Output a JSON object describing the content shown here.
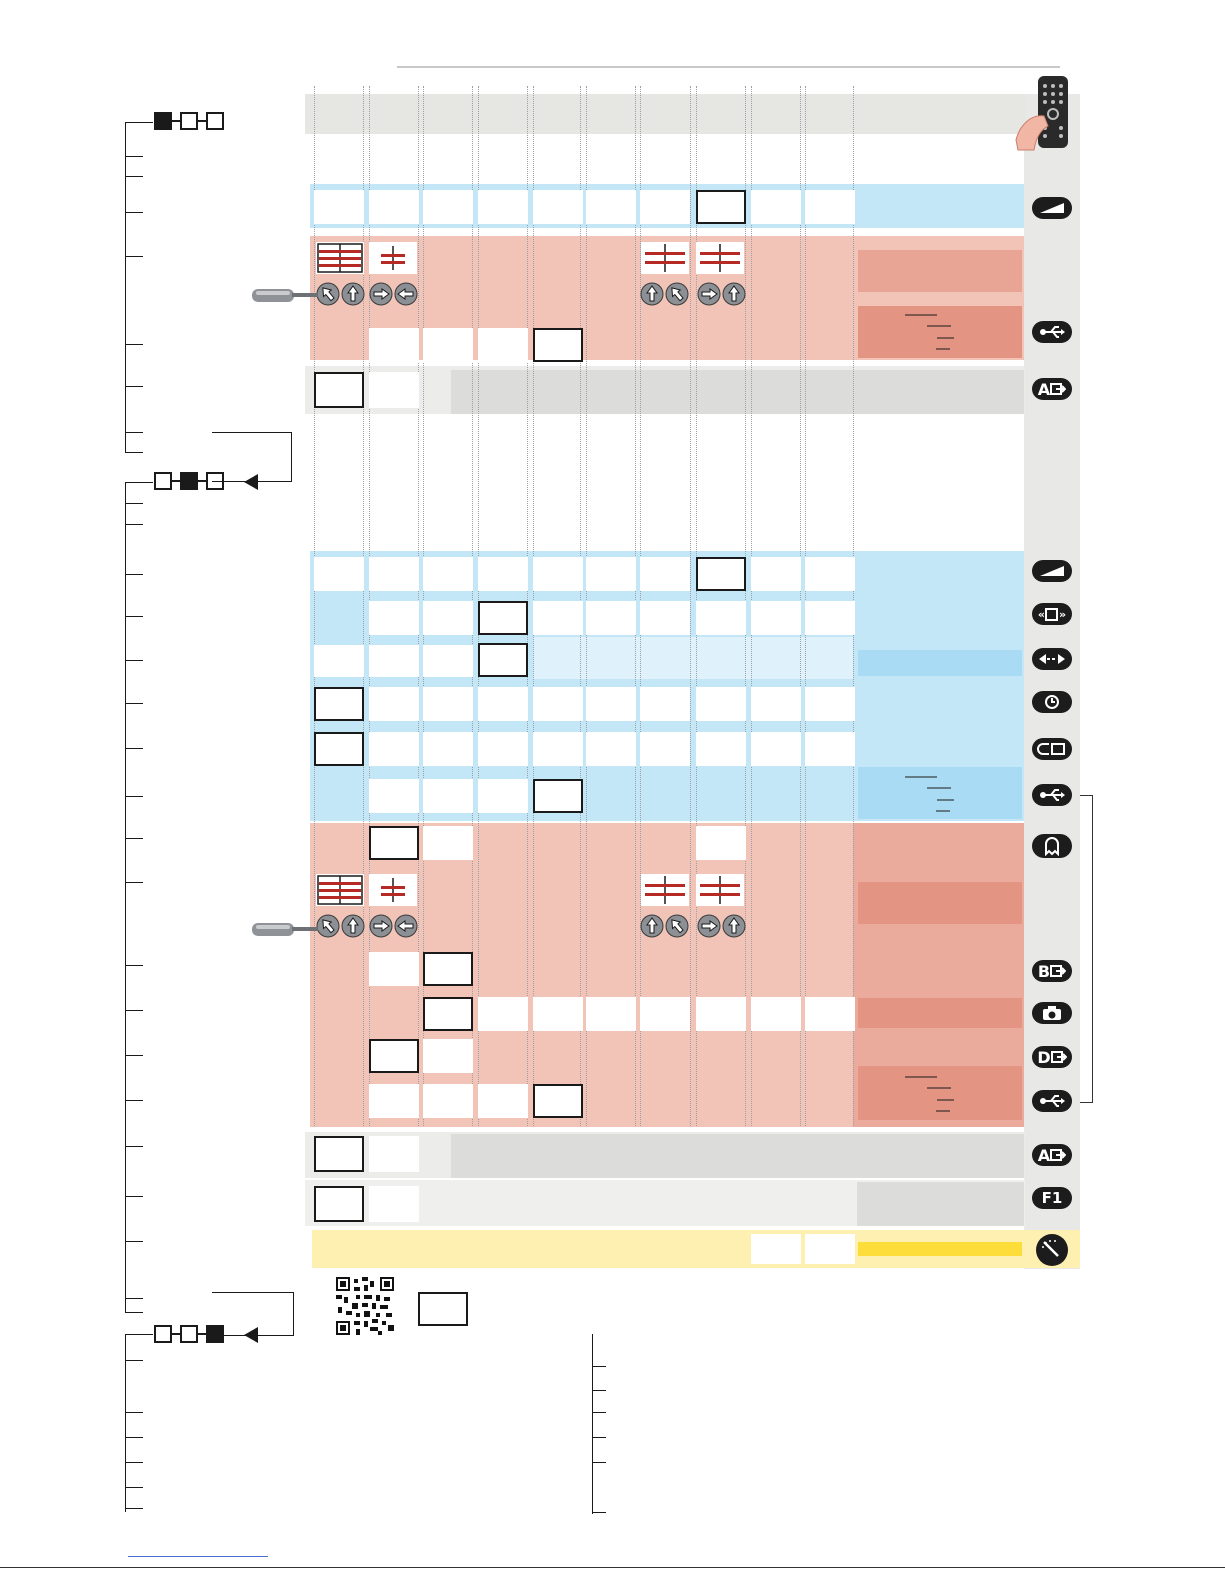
{
  "menus": [
    {
      "name": "menu-1",
      "selected": 0
    },
    {
      "name": "menu-2",
      "selected": 1
    },
    {
      "name": "menu-3",
      "selected": 2
    }
  ],
  "icons": {
    "remote": "remote-control-icon",
    "volume": "volume-ramp-icon",
    "usb": "usb-icon",
    "input_a": "input-a-icon",
    "picture_size": "picture-size-icon",
    "arrows": "left-right-arrows-icon",
    "clock": "clock-icon",
    "cc": "cc-icon",
    "ghost": "ghost-icon",
    "input_b": "input-b-icon",
    "camera": "camera-icon",
    "input_d": "input-d-icon",
    "f1": "f1-icon",
    "dial": "dial-icon",
    "screwdriver": "screwdriver-icon",
    "qr": "qr-code-icon"
  },
  "icon_text": {
    "input_a": "A",
    "input_b": "B",
    "input_d": "D",
    "f1": "F1"
  },
  "colors": {
    "gray_header": "#e8e8e6",
    "blue_band": "#c4e7f7",
    "blue_light": "#dff1fb",
    "blue_strong": "#a9dcf4",
    "red_band": "#f2c4b8",
    "red_panel": "#e8a596",
    "red_panel_dark": "#e39483",
    "gray_band": "#dcdcda",
    "yellow_band": "#fdf0b0",
    "yellow_strong": "#fcdd3a",
    "dark_red": "#b52a24",
    "side_strip": "#e8e8e6"
  }
}
